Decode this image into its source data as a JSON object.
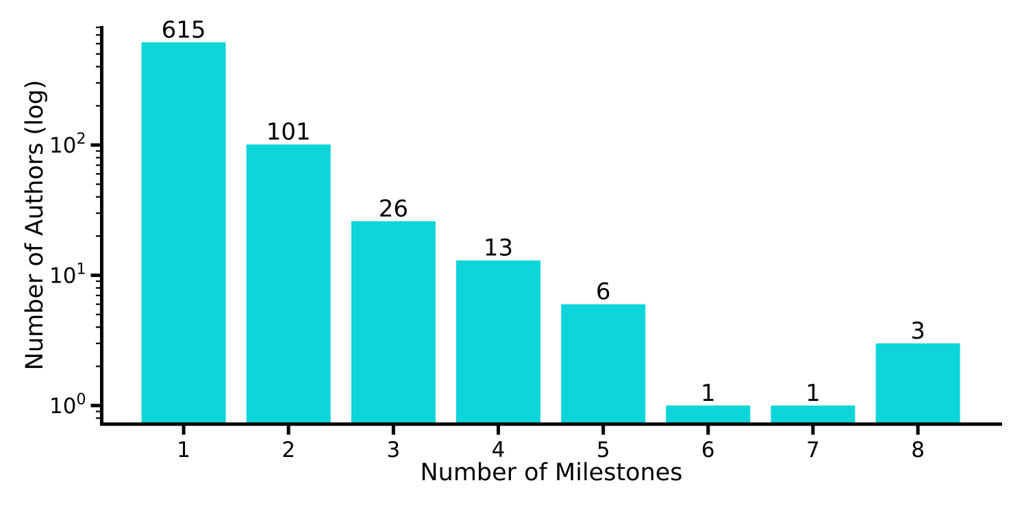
{
  "chart_data": {
    "type": "bar",
    "title": "",
    "xlabel": "Number of Milestones",
    "ylabel": "Number of Authors (log)",
    "categories": [
      "1",
      "2",
      "3",
      "4",
      "5",
      "6",
      "7",
      "8"
    ],
    "values": [
      615,
      101,
      26,
      13,
      6,
      1,
      1,
      3
    ],
    "bar_labels": [
      "615",
      "101",
      "26",
      "13",
      "6",
      "1",
      "1",
      "3"
    ],
    "series_name": "Number of Authors",
    "bar_color": "#0dd5d9",
    "axis_color": "#000000",
    "label_color": "#000000",
    "background_color": "#ffffff",
    "yscale": "log",
    "ylim": [
      0.72,
      820
    ],
    "y_major_ticks": [
      {
        "value": 1,
        "base": "10",
        "exponent": "0"
      },
      {
        "value": 10,
        "base": "10",
        "exponent": "1"
      },
      {
        "value": 100,
        "base": "10",
        "exponent": "2"
      }
    ],
    "y_minor_ticks": "log-decades 2-9 per decade",
    "grid": false,
    "legend_position": "none"
  }
}
